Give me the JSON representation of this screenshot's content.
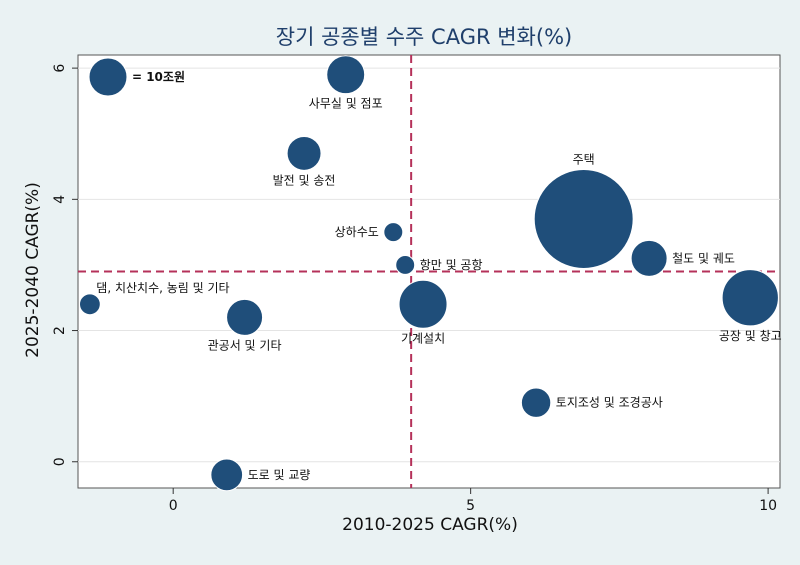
{
  "chart_data": {
    "type": "scatter",
    "title": "장기 공종별 수주 CAGR 변화(%)",
    "xlabel": "2010-2025 CAGR(%)",
    "ylabel": "2025-2040 CAGR(%)",
    "xlim": [
      -1.6,
      10.2
    ],
    "ylim": [
      -0.4,
      6.2
    ],
    "xticks": [
      0,
      5,
      10
    ],
    "yticks": [
      0,
      2,
      4,
      6
    ],
    "grid": true,
    "reference_lines": {
      "x": 4.0,
      "y": 2.9
    },
    "legend": {
      "label": "= 10조원",
      "position": "top-left"
    },
    "colors": {
      "bubble": "#1f4e7a",
      "bubble_edge": "#ffffff",
      "reference_line": "#b5315a",
      "background": "#eaf2f3",
      "plot_bg": "#ffffff"
    },
    "points": [
      {
        "label": "사무실 및 점포",
        "x": 2.9,
        "y": 5.9,
        "size": 10,
        "label_pos": "below"
      },
      {
        "label": "발전 및 송전",
        "x": 2.2,
        "y": 4.7,
        "size": 8,
        "label_pos": "below"
      },
      {
        "label": "상하수도",
        "x": 3.7,
        "y": 3.5,
        "size": 2.5,
        "label_pos": "left"
      },
      {
        "label": "항만 및 공항",
        "x": 3.9,
        "y": 3.0,
        "size": 2.5,
        "label_pos": "right"
      },
      {
        "label": "주택",
        "x": 6.9,
        "y": 3.7,
        "size": 68,
        "label_pos": "above"
      },
      {
        "label": "철도 및 궤도",
        "x": 8.0,
        "y": 3.1,
        "size": 9,
        "label_pos": "right"
      },
      {
        "label": "공장 및 창고",
        "x": 9.7,
        "y": 2.5,
        "size": 22,
        "label_pos": "below"
      },
      {
        "label": "댐, 치산치수, 농림 및 기타",
        "x": -1.4,
        "y": 2.4,
        "size": 3,
        "label_pos": "above-right"
      },
      {
        "label": "관공서 및 기타",
        "x": 1.2,
        "y": 2.2,
        "size": 9,
        "label_pos": "below"
      },
      {
        "label": "기계설치",
        "x": 4.2,
        "y": 2.4,
        "size": 16,
        "label_pos": "below"
      },
      {
        "label": "토지조성 및 조경공사",
        "x": 6.1,
        "y": 0.9,
        "size": 6,
        "label_pos": "right"
      },
      {
        "label": "도로 및 교량",
        "x": 0.9,
        "y": -0.2,
        "size": 7,
        "label_pos": "right"
      }
    ]
  }
}
